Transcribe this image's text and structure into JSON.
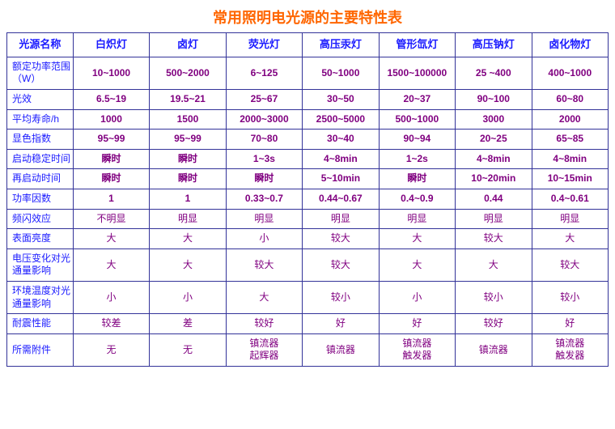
{
  "colors": {
    "title": "#ff6600",
    "header_text": "#1a1aff",
    "label_text": "#1a1aff",
    "data_text": "#800080",
    "border": "#333399"
  },
  "title": "常用照明电光源的主要特性表",
  "columns": [
    "光源名称",
    "白炽灯",
    "卤灯",
    "荧光灯",
    "高压汞灯",
    "管形氙灯",
    "高压钠灯",
    "卤化物灯"
  ],
  "rows": [
    {
      "label": "额定功率范围（W）",
      "bold": true,
      "cells": [
        "10~1000",
        "500~2000",
        "6~125",
        "50~1000",
        "1500~100000",
        "25 ~400",
        "400~1000"
      ]
    },
    {
      "label": "光效",
      "bold": true,
      "cells": [
        "6.5~19",
        "19.5~21",
        "25~67",
        "30~50",
        "20~37",
        "90~100",
        "60~80"
      ]
    },
    {
      "label": "平均寿命/h",
      "bold": true,
      "cells": [
        "1000",
        "1500",
        "2000~3000",
        "2500~5000",
        "500~1000",
        "3000",
        "2000"
      ]
    },
    {
      "label": "显色指数",
      "bold": true,
      "cells": [
        "95~99",
        "95~99",
        "70~80",
        "30~40",
        "90~94",
        "20~25",
        "65~85"
      ]
    },
    {
      "label": "启动稳定时间",
      "bold": true,
      "cells": [
        "瞬时",
        "瞬时",
        "1~3s",
        "4~8min",
        "1~2s",
        "4~8min",
        "4~8min"
      ]
    },
    {
      "label": "再启动时间",
      "bold": true,
      "cells": [
        "瞬时",
        "瞬时",
        "瞬时",
        "5~10min",
        "瞬时",
        "10~20min",
        "10~15min"
      ]
    },
    {
      "label": "功率因数",
      "bold": true,
      "cells": [
        "1",
        "1",
        "0.33~0.7",
        "0.44~0.67",
        "0.4~0.9",
        "0.44",
        "0.4~0.61"
      ]
    },
    {
      "label": "频闪效应",
      "bold": false,
      "cells": [
        "不明显",
        "明显",
        "明显",
        "明显",
        "明显",
        "明显",
        "明显"
      ]
    },
    {
      "label": "表面亮度",
      "bold": false,
      "cells": [
        "大",
        "大",
        "小",
        "较大",
        "大",
        "较大",
        "大"
      ]
    },
    {
      "label": "电压变化对光通量影响",
      "bold": false,
      "cells": [
        "大",
        "大",
        "较大",
        "较大",
        "大",
        "大",
        "较大"
      ]
    },
    {
      "label": "环境温度对光通量影响",
      "bold": false,
      "cells": [
        "小",
        "小",
        "大",
        "较小",
        "小",
        "较小",
        "较小"
      ]
    },
    {
      "label": "耐震性能",
      "bold": false,
      "cells": [
        "较差",
        "差",
        "较好",
        "好",
        "好",
        "较好",
        "好"
      ]
    },
    {
      "label": "所需附件",
      "bold": false,
      "cells": [
        "无",
        "无",
        "镇流器\n起辉器",
        "镇流器",
        "镇流器\n触发器",
        "镇流器",
        "镇流器\n触发器"
      ]
    }
  ]
}
